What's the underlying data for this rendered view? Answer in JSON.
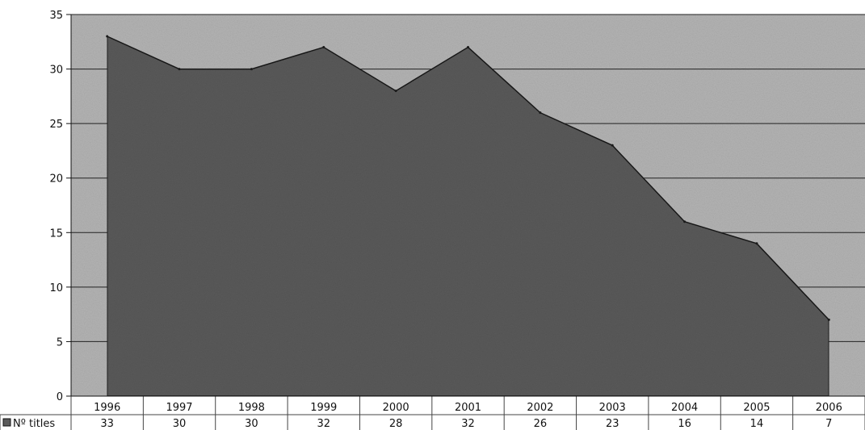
{
  "chart_data": {
    "type": "area",
    "categories": [
      "1996",
      "1997",
      "1998",
      "1999",
      "2000",
      "2001",
      "2002",
      "2003",
      "2004",
      "2005",
      "2006"
    ],
    "series": [
      {
        "name": "Nº titles",
        "values": [
          33,
          30,
          30,
          32,
          28,
          32,
          26,
          23,
          16,
          14,
          7
        ]
      }
    ],
    "data_table": {
      "row_label": "Nº titles",
      "values": [
        "33",
        "30",
        "30",
        "32",
        "28",
        "32",
        "26",
        "23",
        "16",
        "14",
        "7"
      ]
    },
    "y_ticks": [
      "0",
      "5",
      "10",
      "15",
      "20",
      "25",
      "30",
      "35"
    ],
    "ylim": [
      0,
      35
    ],
    "grid": true,
    "legend": "data table row label, bottom-left",
    "colors": {
      "plot_background": "#b4b4b4",
      "area_fill": "#5a5a5a",
      "area_stroke": "#1a1a1a",
      "gridline": "#222222",
      "legend_swatch": "#5a5a5a"
    }
  }
}
